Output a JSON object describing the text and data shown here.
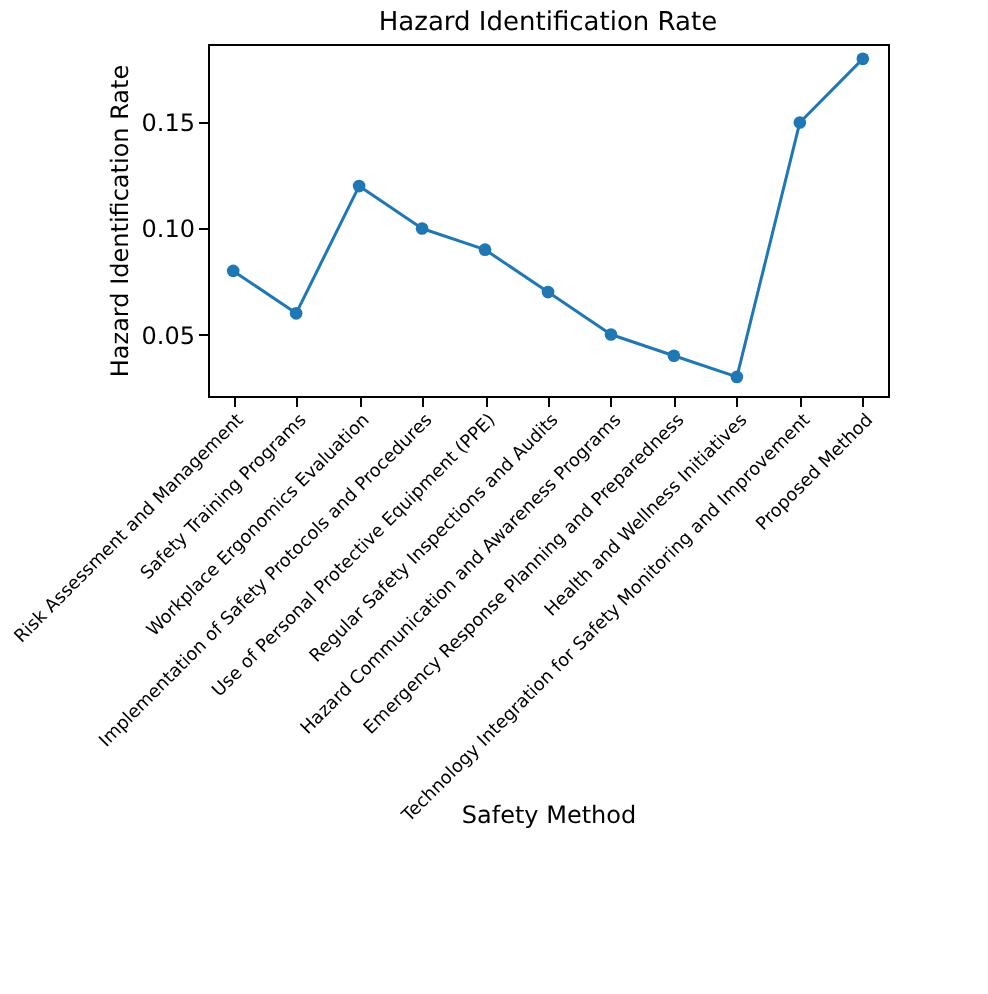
{
  "chart_data": {
    "type": "line",
    "title": "Hazard Identification Rate",
    "xlabel": "Safety Method",
    "ylabel": "Hazard Identification Rate",
    "categories": [
      "Risk Assessment and Management",
      "Safety Training Programs",
      "Workplace Ergonomics Evaluation",
      "Implementation of Safety Protocols and Procedures",
      "Use of Personal Protective Equipment (PPE)",
      "Regular Safety Inspections and Audits",
      "Hazard Communication and Awareness Programs",
      "Emergency Response Planning and Preparedness",
      "Health and Wellness Initiatives",
      "Technology Integration for Safety Monitoring and Improvement",
      "Proposed Method"
    ],
    "series": [
      {
        "color": "#1f77b4",
        "values": [
          0.08,
          0.06,
          0.12,
          0.1,
          0.09,
          0.07,
          0.05,
          0.04,
          0.03,
          0.15,
          0.18
        ]
      }
    ],
    "ylim": [
      0.021,
      0.187
    ],
    "yticks": [
      {
        "value": 0.05,
        "label": "0.05"
      },
      {
        "value": 0.1,
        "label": "0.10"
      },
      {
        "value": 0.15,
        "label": "0.15"
      }
    ],
    "marker": "circle",
    "grid": false,
    "legend": false
  }
}
